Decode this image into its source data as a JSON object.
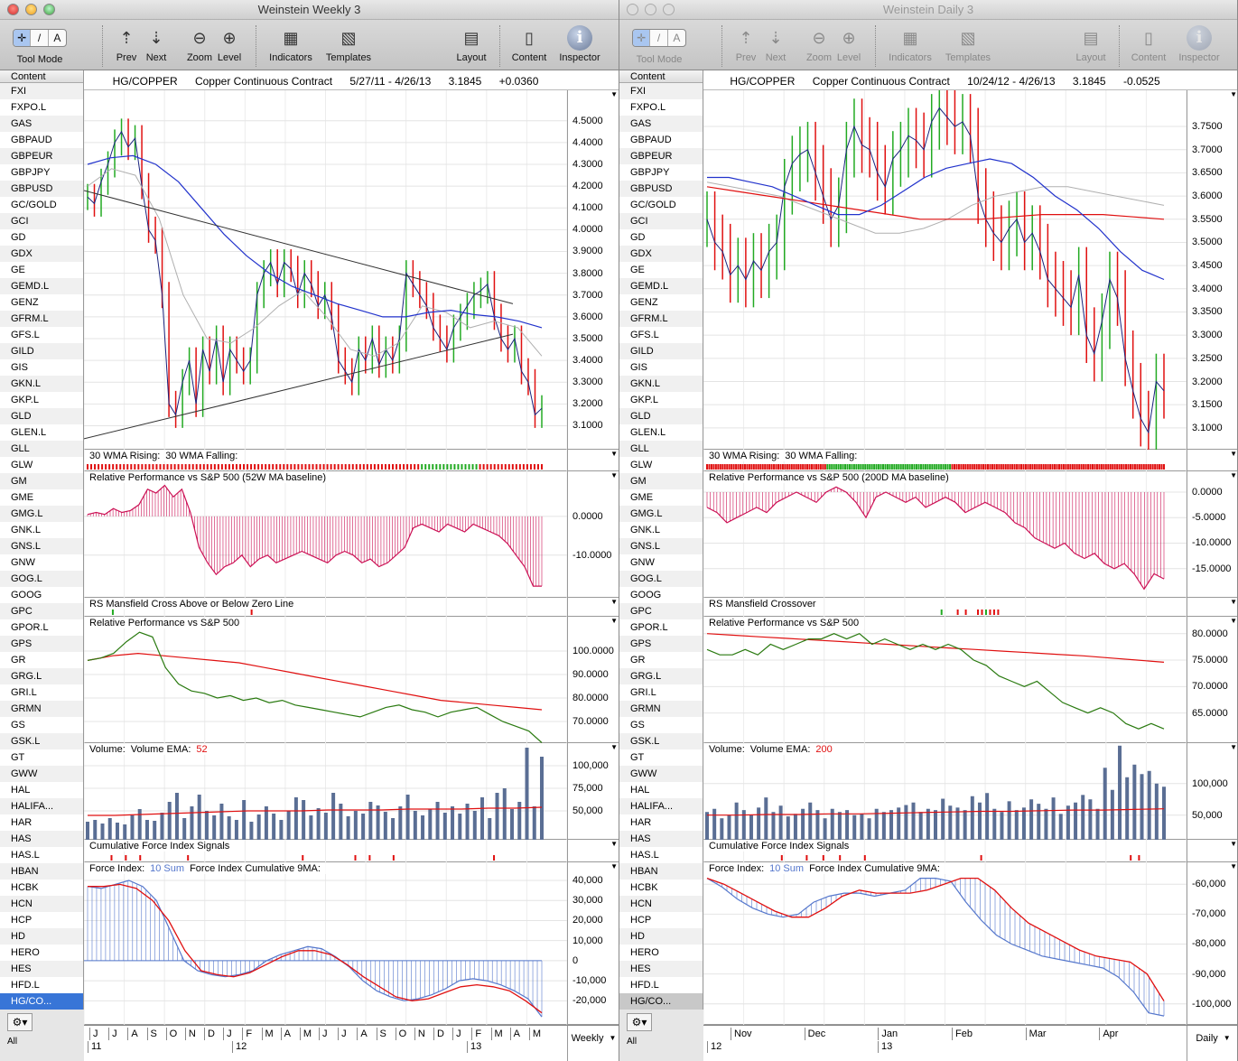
{
  "sidebar_items": [
    "FXI",
    "FXPO.L",
    "GAS",
    "GBPAUD",
    "GBPEUR",
    "GBPJPY",
    "GBPUSD",
    "GC/GOLD",
    "GCI",
    "GD",
    "GDX",
    "GE",
    "GEMD.L",
    "GENZ",
    "GFRM.L",
    "GFS.L",
    "GILD",
    "GIS",
    "GKN.L",
    "GKP.L",
    "GLD",
    "GLEN.L",
    "GLL",
    "GLW",
    "GM",
    "GME",
    "GMG.L",
    "GNK.L",
    "GNS.L",
    "GNW",
    "GOG.L",
    "GOOG",
    "GPC",
    "GPOR.L",
    "GPS",
    "GR",
    "GRG.L",
    "GRI.L",
    "GRMN",
    "GS",
    "GSK.L",
    "GT",
    "GWW",
    "HAL",
    "HALIFA...",
    "HAR",
    "HAS",
    "HAS.L",
    "HBAN",
    "HCBK",
    "HCN",
    "HCP",
    "HD",
    "HERO",
    "HES",
    "HFD.L",
    "HG/CO..."
  ],
  "toolbar": {
    "tool_mode": "Tool Mode",
    "prev": "Prev",
    "next": "Next",
    "zoom": "Zoom",
    "level": "Level",
    "indicators": "Indicators",
    "templates": "Templates",
    "layout": "Layout",
    "content": "Content",
    "inspector": "Inspector",
    "seg": [
      "✛",
      "/",
      "A"
    ]
  },
  "sidebar": {
    "header": "Content",
    "footer": "All"
  },
  "colors": {
    "up": "#22aa22",
    "down": "#e01010",
    "ma_blue": "#2233cc",
    "ma_grey": "#b0b0b0",
    "rs": "#cc1155",
    "green_line": "#2a7a10",
    "red_line": "#e01010",
    "force": "#5577cc"
  },
  "windows": [
    {
      "title": "Weinstein Weekly 3",
      "symbol": "HG/COPPER",
      "name": "Copper Continuous Contract",
      "range": "5/27/11 - 4/26/13",
      "last": "3.1845",
      "change": "+0.0360",
      "period": "Weekly",
      "months": [
        "J",
        "J",
        "A",
        "S",
        "O",
        "N",
        "D",
        "J",
        "F",
        "M",
        "A",
        "M",
        "J",
        "J",
        "A",
        "S",
        "O",
        "N",
        "D",
        "J",
        "F",
        "M",
        "A",
        "M"
      ],
      "years": [
        "11",
        "12",
        "13"
      ],
      "labels": {
        "wma_rising": "30 WMA Rising:",
        "wma_falling": "30 WMA Falling:",
        "rp_ma": "Relative Performance vs S&P 500 (52W MA baseline)",
        "rs_cross": "RS Mansfield Cross Above or Below Zero Line",
        "rp": "Relative Performance vs S&P 500",
        "volume": "Volume:",
        "vol_ema": "Volume EMA:",
        "vol_ema_n": "52",
        "cfi": "Cumulative Force Index Signals",
        "force": "Force Index:",
        "force_n": "10 Sum",
        "force_cum": "Force Index Cumulative 9MA:"
      }
    },
    {
      "title": "Weinstein Daily 3",
      "symbol": "HG/COPPER",
      "name": "Copper Continuous Contract",
      "range": "10/24/12 - 4/26/13",
      "last": "3.1845",
      "change": "-0.0525",
      "period": "Daily",
      "months": [
        "Nov",
        "Dec",
        "Jan",
        "Feb",
        "Mar",
        "Apr"
      ],
      "years": [
        "12",
        "13"
      ],
      "labels": {
        "wma_rising": "30 WMA Rising:",
        "wma_falling": "30 WMA Falling:",
        "rp_ma": "Relative Performance vs S&P 500 (200D MA baseline)",
        "rs_cross": "RS Mansfield Crossover",
        "rp": "Relative Performance vs S&P 500",
        "volume": "Volume:",
        "vol_ema": "Volume EMA:",
        "vol_ema_n": "200",
        "cfi": "Cumulative Force Index Signals",
        "force": "Force Index:",
        "force_n": "10 Sum",
        "force_cum": "Force Index Cumulative 9MA:"
      }
    }
  ],
  "chart_data": [
    {
      "window": "weekly",
      "type": "line",
      "price": {
        "ylim": [
          2.99,
          4.64
        ],
        "ticks": [
          "4.5000",
          "4.4000",
          "4.3000",
          "4.2000",
          "4.1000",
          "4.0000",
          "3.9000",
          "3.8000",
          "3.7000",
          "3.6000",
          "3.5000",
          "3.4000",
          "3.3000",
          "3.2000",
          "3.1000"
        ],
        "close": [
          4.15,
          4.12,
          4.22,
          4.3,
          4.4,
          4.45,
          4.38,
          4.42,
          4.2,
          4.0,
          3.95,
          3.7,
          3.2,
          3.15,
          3.3,
          3.4,
          3.2,
          3.45,
          3.35,
          3.5,
          3.3,
          3.45,
          3.4,
          3.35,
          3.4,
          3.7,
          3.8,
          3.85,
          3.75,
          3.85,
          3.82,
          3.7,
          3.8,
          3.75,
          3.65,
          3.7,
          3.6,
          3.4,
          3.35,
          3.3,
          3.45,
          3.4,
          3.5,
          3.38,
          3.45,
          3.4,
          3.5,
          3.8,
          3.75,
          3.7,
          3.65,
          3.55,
          3.5,
          3.45,
          3.55,
          3.6,
          3.65,
          3.7,
          3.72,
          3.75,
          3.6,
          3.5,
          3.45,
          3.5,
          3.35,
          3.3,
          3.15,
          3.18
        ],
        "ma30": [
          4.3,
          4.33,
          4.34,
          4.3,
          4.22,
          4.1,
          3.98,
          3.88,
          3.8,
          3.74,
          3.7,
          3.66,
          3.63,
          3.6,
          3.6,
          3.62,
          3.63,
          3.61,
          3.6,
          3.58,
          3.55
        ],
        "ma10": [
          4.2,
          4.28,
          4.25,
          4.05,
          3.7,
          3.5,
          3.48,
          3.55,
          3.65,
          3.72,
          3.6,
          3.45,
          3.42,
          3.48,
          3.65,
          3.62,
          3.55,
          3.58,
          3.55,
          3.42
        ],
        "trend_upper": [
          4.18,
          3.66
        ],
        "trend_lower": [
          3.04,
          3.52
        ]
      },
      "wma_signal": "rrrrrrrrrrrrrrrrrrrrrrrrrrrrrrrrrrrrrrrrrrrrrrrrrrrrrrrrrrrrrrrrrrrrrrrrrrrrrrrrrrrrrrrrrrrrggggggggggggggggrrrrrrrrrrrrrrrrrr",
      "rp_ma": {
        "ylim": [
          -21,
          11.6
        ],
        "ticks": [
          [
            "0.0000",
            0
          ],
          [
            "-10.0000",
            -10
          ]
        ],
        "values": [
          0.5,
          1,
          0.5,
          2,
          1,
          1.5,
          3,
          7,
          6,
          8,
          5,
          7,
          1,
          -8,
          -12,
          -15,
          -13,
          -12,
          -10,
          -13,
          -11,
          -10,
          -12,
          -11,
          -10,
          -9,
          -10,
          -11,
          -12,
          -10,
          -9,
          -10,
          -12,
          -11,
          -13,
          -12,
          -10,
          -8,
          -3,
          -2,
          -3,
          -4,
          -2,
          -3,
          -4,
          -2,
          -3,
          -4,
          -5,
          -7,
          -10,
          -13,
          -18,
          -18
        ]
      },
      "rs_cross": "..g..........r.......................",
      "rp": {
        "ylim": [
          60.8,
          114.6
        ],
        "ticks": [
          [
            "100.0000",
            100
          ],
          [
            "90.0000",
            90
          ],
          [
            "80.0000",
            80
          ],
          [
            "70.0000",
            70
          ]
        ],
        "green": [
          96,
          97,
          99,
          104,
          108,
          106,
          93,
          86,
          83,
          82,
          80,
          81,
          79,
          80,
          78,
          79,
          77,
          76,
          75,
          74,
          73,
          72,
          74,
          76,
          77,
          75,
          74,
          72,
          74,
          75,
          76,
          73,
          70,
          68,
          66,
          61
        ],
        "red": [
          96,
          98,
          99,
          98,
          97,
          96,
          95,
          93,
          91,
          89,
          87,
          85,
          83,
          81,
          79,
          78,
          77,
          76,
          75
        ]
      },
      "volume": {
        "ylim": [
          18000,
          125000
        ],
        "ticks": [
          [
            "100,000",
            100000
          ],
          [
            "75,000",
            75000
          ],
          [
            "50,000",
            50000
          ]
        ],
        "values": [
          38,
          40,
          36,
          42,
          37,
          35,
          45,
          52,
          40,
          39,
          48,
          60,
          70,
          42,
          55,
          68,
          50,
          45,
          58,
          44,
          40,
          62,
          38,
          46,
          55,
          47,
          40,
          50,
          65,
          62,
          45,
          53,
          48,
          70,
          58,
          44,
          50,
          47,
          60,
          56,
          49,
          42,
          55,
          68,
          50,
          45,
          52,
          60,
          48,
          55,
          47,
          58,
          50,
          65,
          42,
          70,
          75,
          52,
          60,
          120,
          55,
          110
        ],
        "ema": [
          45,
          45,
          46,
          47,
          48,
          49,
          50,
          50,
          50,
          51,
          51,
          51,
          52,
          52,
          52,
          53,
          53,
          54
        ]
      },
      "cfi": ".....r..r..r.........r.......................r..........r..r....r....................r..........",
      "force": {
        "ylim": [
          -32000,
          49000
        ],
        "ticks": [
          [
            "40,000",
            40000
          ],
          [
            "30,000",
            30000
          ],
          [
            "20,000",
            20000
          ],
          [
            "10,000",
            10000
          ],
          [
            "0",
            0
          ],
          [
            "-10,000",
            -10000
          ],
          [
            "-20,000",
            -20000
          ]
        ],
        "hist": [
          37,
          36,
          38,
          40,
          37,
          30,
          15,
          0,
          -5,
          -7,
          -8,
          -7,
          -5,
          0,
          3,
          5,
          7,
          6,
          2,
          -3,
          -10,
          -15,
          -18,
          -20,
          -19,
          -17,
          -14,
          -10,
          -9,
          -10,
          -12,
          -15,
          -19,
          -28
        ],
        "ma9": [
          37,
          37,
          38,
          36,
          30,
          20,
          5,
          -5,
          -7,
          -8,
          -6,
          -2,
          2,
          5,
          5,
          3,
          -2,
          -8,
          -13,
          -18,
          -20,
          -19,
          -16,
          -13,
          -12,
          -13,
          -15,
          -20,
          -26
        ]
      }
    },
    {
      "window": "daily",
      "type": "line",
      "price": {
        "ylim": [
          3.053,
          3.828
        ],
        "ticks": [
          "3.7500",
          "3.7000",
          "3.6500",
          "3.6000",
          "3.5500",
          "3.5000",
          "3.4500",
          "3.4000",
          "3.3500",
          "3.3000",
          "3.2500",
          "3.2000",
          "3.1500",
          "3.1000"
        ],
        "close": [
          3.55,
          3.5,
          3.48,
          3.43,
          3.45,
          3.42,
          3.46,
          3.44,
          3.48,
          3.5,
          3.62,
          3.67,
          3.69,
          3.7,
          3.65,
          3.6,
          3.55,
          3.58,
          3.7,
          3.75,
          3.71,
          3.7,
          3.65,
          3.62,
          3.68,
          3.7,
          3.73,
          3.72,
          3.7,
          3.76,
          3.79,
          3.77,
          3.75,
          3.76,
          3.73,
          3.6,
          3.55,
          3.52,
          3.5,
          3.53,
          3.55,
          3.5,
          3.52,
          3.48,
          3.42,
          3.4,
          3.38,
          3.36,
          3.43,
          3.3,
          3.26,
          3.33,
          3.42,
          3.38,
          3.25,
          3.18,
          3.12,
          3.09,
          3.2,
          3.18
        ],
        "ma30": [
          3.64,
          3.64,
          3.63,
          3.62,
          3.6,
          3.58,
          3.56,
          3.56,
          3.58,
          3.61,
          3.64,
          3.66,
          3.67,
          3.68,
          3.67,
          3.64,
          3.6,
          3.57,
          3.53,
          3.48,
          3.44,
          3.42
        ],
        "ma10": [
          3.63,
          3.62,
          3.61,
          3.6,
          3.58,
          3.56,
          3.54,
          3.52,
          3.52,
          3.53,
          3.55,
          3.58,
          3.6,
          3.61,
          3.62,
          3.62,
          3.61,
          3.6,
          3.59,
          3.58
        ],
        "red": [
          3.62,
          3.61,
          3.6,
          3.59,
          3.58,
          3.57,
          3.56,
          3.55,
          3.55,
          3.55,
          3.555,
          3.56,
          3.56,
          3.56,
          3.555,
          3.55
        ]
      },
      "wma_signal": "rrrrrrrrrrrrrrrrrrrrrrrrrrrrrrrrrrrrrrrrrrrrrrrrrrrrrrggggggggggggggggggggggggggggggggggggggggggggggggggggggggrrrrrrrrrrrrrrrrrrrrrrrrrrrrrrrrrrrrrrrrrrrrrrrrrrrrrrrrrrrrrrrrrrrrrrrrrrrrrrrrrrrrrrrrrrrrrrrr",
      "rp_ma": {
        "ylim": [
          -20.7,
          4.06
        ],
        "ticks": [
          [
            "0.0000",
            0
          ],
          [
            "-5.0000",
            -5
          ],
          [
            "-10.0000",
            -10
          ],
          [
            "-15.0000",
            -15
          ]
        ],
        "values": [
          -3,
          -4,
          -6,
          -5,
          -4,
          -3,
          -4,
          -2,
          -1,
          0,
          -1,
          -2,
          0,
          1,
          0,
          -2,
          -5,
          -1,
          0,
          -1,
          -2,
          -1,
          -3,
          -2,
          -1,
          -2,
          -4,
          -3,
          -2,
          -3,
          -4,
          -6,
          -7,
          -9,
          -10,
          -11,
          -10,
          -12,
          -13,
          -12,
          -14,
          -15,
          -14,
          -16,
          -19,
          -16,
          -17
        ]
      },
      "rs_cross": "..........................................................g...r.r..rrgrrr.........................................",
      "rp": {
        "ylim": [
          59.3,
          83.2
        ],
        "ticks": [
          [
            "80.0000",
            80
          ],
          [
            "75.0000",
            75
          ],
          [
            "70.0000",
            70
          ],
          [
            "65.0000",
            65
          ]
        ],
        "green": [
          77,
          76,
          76,
          77,
          76,
          78,
          77,
          78,
          79,
          79,
          80,
          79,
          80,
          78,
          79,
          78,
          77,
          78,
          77,
          78,
          77,
          75,
          74,
          72,
          71,
          70,
          71,
          69,
          67,
          66,
          65,
          66,
          65,
          63,
          62,
          63,
          62
        ],
        "red": [
          80,
          79.7,
          79.4,
          79.1,
          78.8,
          78.5,
          78.2,
          77.9,
          77.6,
          77.3,
          77,
          76.7,
          76.4,
          76.1,
          75.8,
          75.4,
          75,
          74.6
        ]
      },
      "volume": {
        "ylim": [
          11000,
          164000
        ],
        "ticks": [
          [
            "100,000",
            100000
          ],
          [
            "50,000",
            50000
          ]
        ],
        "values": [
          55,
          60,
          45,
          50,
          70,
          58,
          50,
          62,
          78,
          55,
          65,
          48,
          52,
          60,
          70,
          58,
          45,
          60,
          55,
          58,
          50,
          52,
          45,
          60,
          55,
          58,
          62,
          66,
          70,
          55,
          60,
          58,
          76,
          65,
          62,
          58,
          80,
          70,
          85,
          60,
          55,
          72,
          58,
          62,
          75,
          68,
          60,
          78,
          52,
          65,
          70,
          82,
          75,
          60,
          125,
          90,
          160,
          110,
          130,
          115,
          120,
          100,
          95
        ],
        "ema": [
          50,
          50,
          51,
          51,
          52,
          52,
          53,
          54,
          55,
          56,
          56,
          57,
          58,
          58,
          59,
          60
        ]
      },
      "cfi": "..................r.....r...r...r.....r...........................r...................................r.r......",
      "force": {
        "ylim": [
          -107000,
          -52700
        ],
        "ticks": [
          [
            "-60,000",
            -60000
          ],
          [
            "-70,000",
            -70000
          ],
          [
            "-80,000",
            -80000
          ],
          [
            "-90,000",
            -90000
          ],
          [
            "-100,000",
            -100000
          ]
        ],
        "hist": [
          -58,
          -61,
          -65,
          -68,
          -70,
          -71,
          -70,
          -66,
          -64,
          -63,
          -63,
          -64,
          -63,
          -62,
          -58,
          -58,
          -59,
          -66,
          -72,
          -77,
          -80,
          -82,
          -84,
          -85,
          -86,
          -87,
          -88,
          -91,
          -96,
          -103,
          -104
        ],
        "ma9": [
          -58,
          -60,
          -63,
          -66,
          -69,
          -71,
          -71,
          -68,
          -64,
          -62,
          -63,
          -63,
          -63,
          -62,
          -60,
          -58,
          -58,
          -62,
          -68,
          -73,
          -76,
          -79,
          -82,
          -84,
          -85,
          -86,
          -90,
          -99
        ]
      }
    }
  ]
}
